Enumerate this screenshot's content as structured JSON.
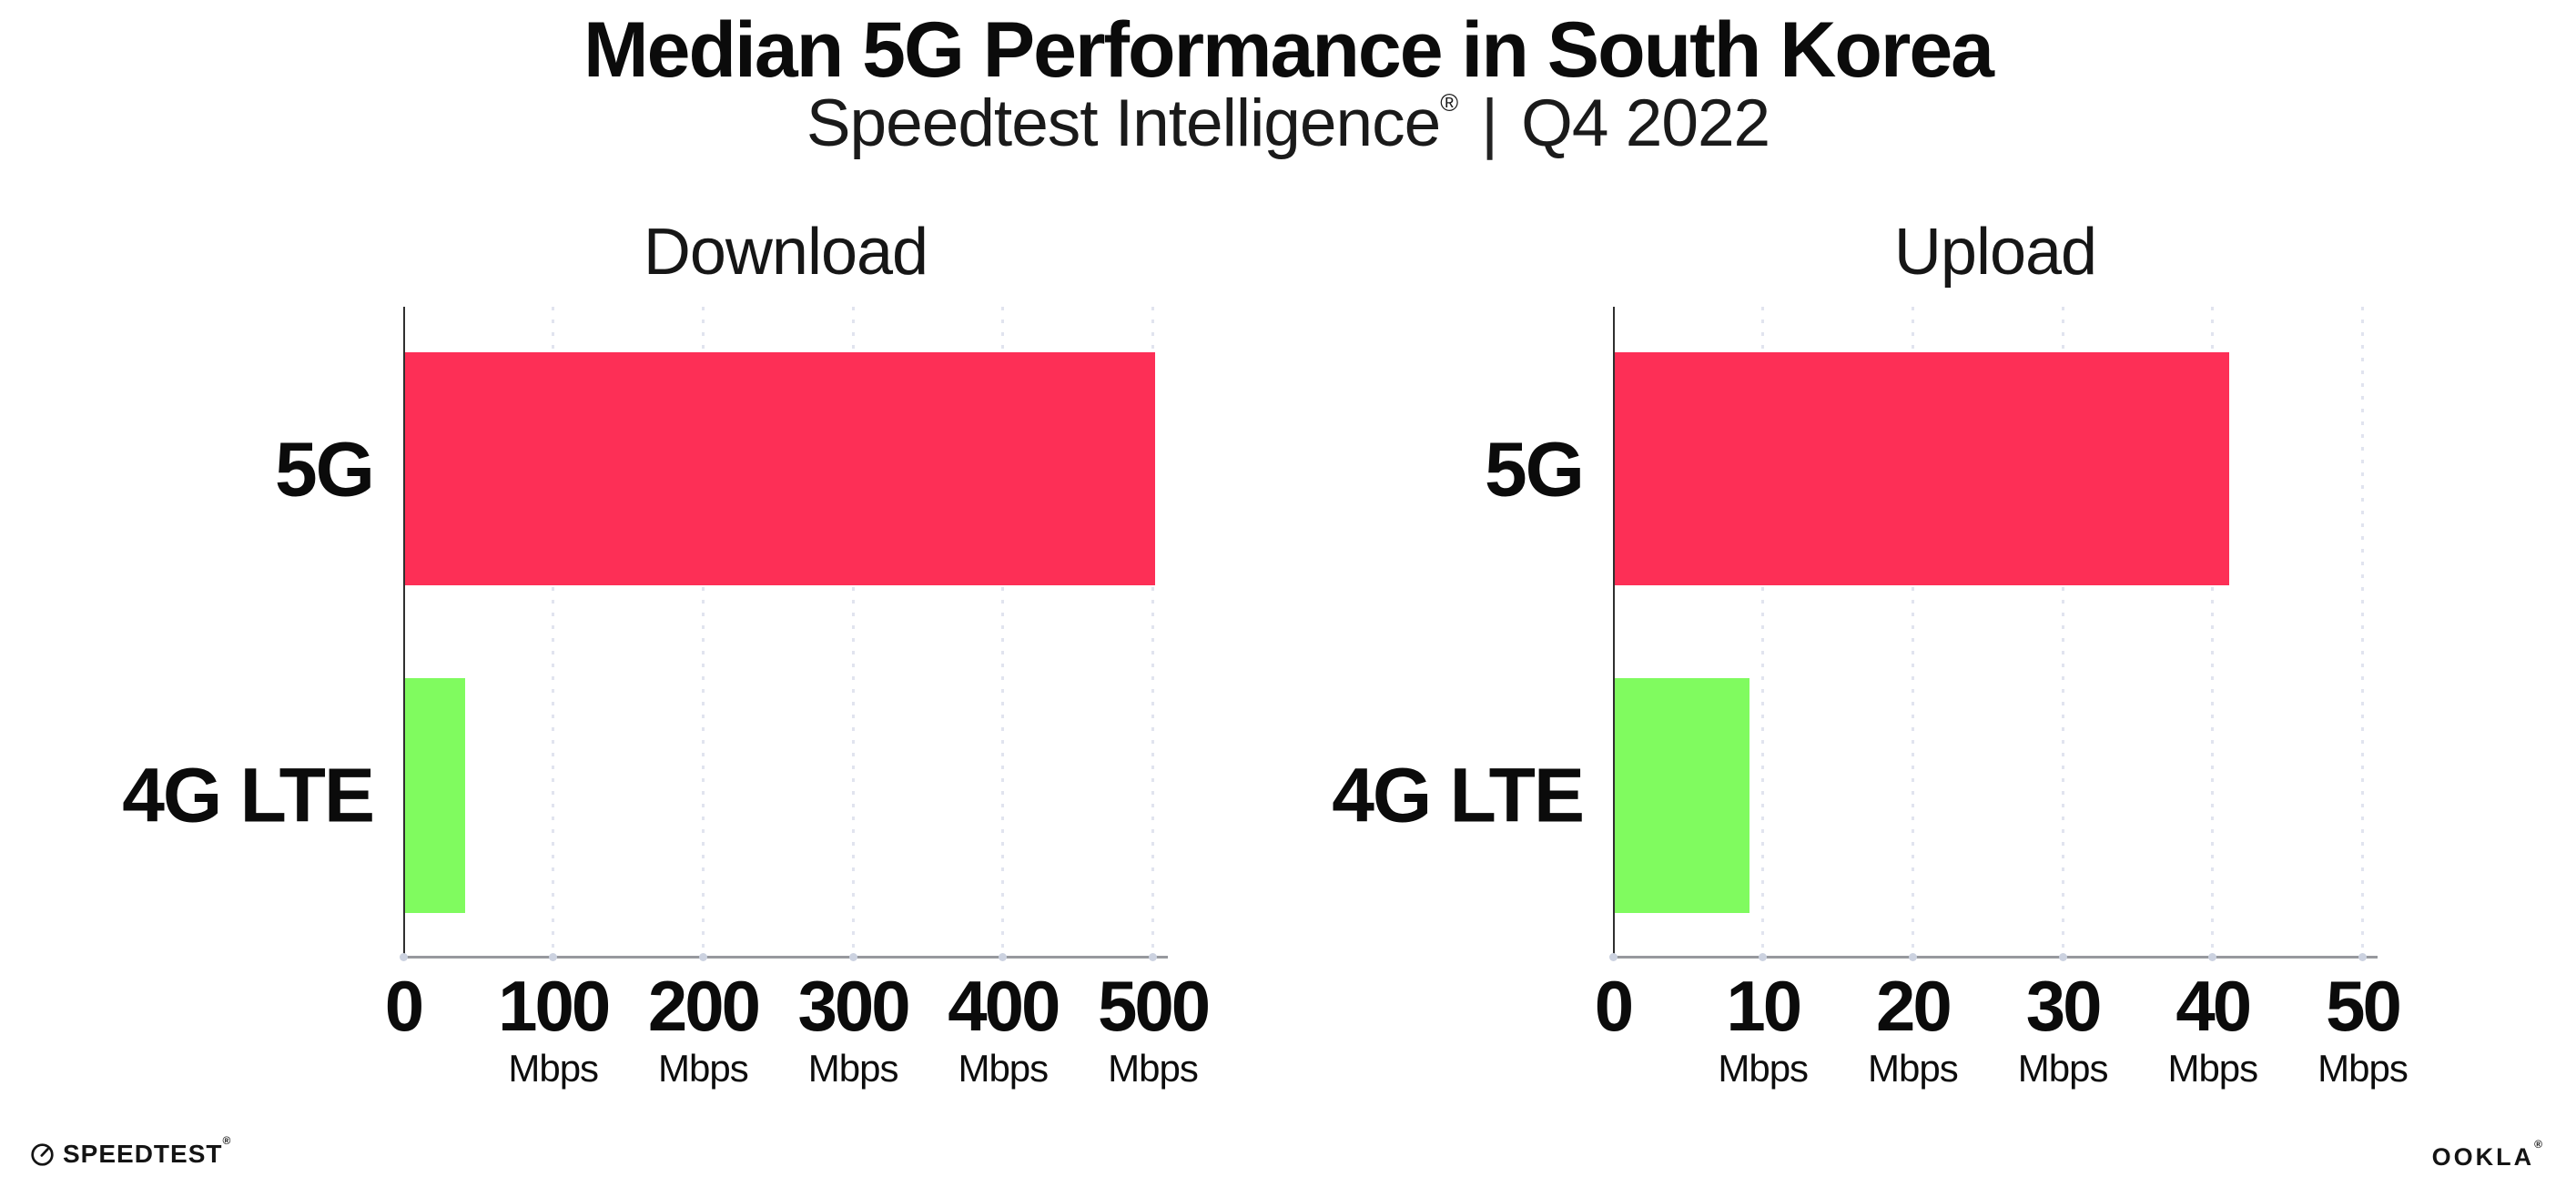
{
  "header": {
    "title": "Median 5G Performance in South Korea",
    "subtitle_product": "Speedtest Intelligence",
    "subtitle_reg": "®",
    "subtitle_divider": "|",
    "subtitle_quarter": "Q4 2022"
  },
  "chart_data": [
    {
      "type": "bar",
      "orientation": "horizontal",
      "title": "Download",
      "categories": [
        "5G",
        "4G LTE"
      ],
      "values": [
        500,
        40
      ],
      "unit": "Mbps",
      "xlim": [
        0,
        510
      ],
      "ticks": [
        0,
        100,
        200,
        300,
        400,
        500
      ],
      "tick_unit": "Mbps",
      "bar_colors": [
        "#FD2F56",
        "#80FB5F"
      ],
      "grid": "dotted-vertical-gridlines",
      "legend": "none"
    },
    {
      "type": "bar",
      "orientation": "horizontal",
      "title": "Upload",
      "categories": [
        "5G",
        "4G LTE"
      ],
      "values": [
        41,
        9
      ],
      "unit": "Mbps",
      "xlim": [
        0,
        51
      ],
      "ticks": [
        0,
        10,
        20,
        30,
        40,
        50
      ],
      "tick_unit": "Mbps",
      "bar_colors": [
        "#FD2F56",
        "#80FB5F"
      ],
      "grid": "dotted-vertical-gridlines",
      "legend": "none"
    }
  ],
  "footer": {
    "speedtest_brand": "SPEEDTEST",
    "speedtest_reg": "®",
    "ookla_brand": "OOKLA",
    "ookla_reg": "®"
  },
  "colors": {
    "bar_5g": "#FD2F56",
    "bar_4g_lte": "#80FB5F",
    "gridline": "#E1E4EF",
    "x_axis_line": "#97999E",
    "y_axis_line": "#2F2F2F",
    "text": "#0B0B0B",
    "background": "#FFFFFF"
  }
}
